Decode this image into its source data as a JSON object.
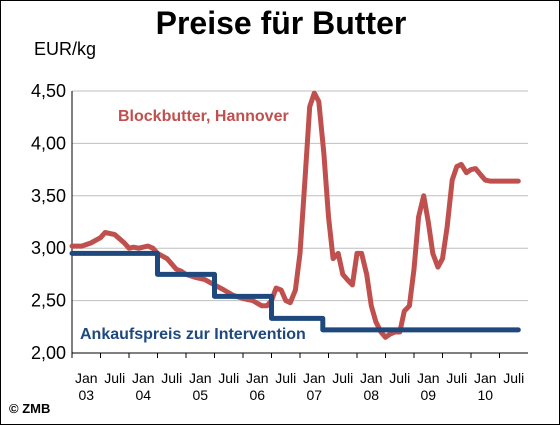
{
  "chart_data": {
    "type": "line",
    "title": "Preise für Butter",
    "ylabel": "EUR/kg",
    "ylim": [
      2.0,
      4.5
    ],
    "yticks": [
      "2,00",
      "2,50",
      "3,00",
      "3,50",
      "4,00",
      "4,50"
    ],
    "ytick_values": [
      2.0,
      2.5,
      3.0,
      3.5,
      4.0,
      4.5
    ],
    "xrange": [
      2003.0,
      2011.0
    ],
    "xtick_top": [
      "Jan",
      "Juli",
      "Jan",
      "Juli",
      "Jan",
      "Juli",
      "Jan",
      "Juli",
      "Jan",
      "Juli",
      "Jan",
      "Juli",
      "Jan",
      "Juli",
      "Jan",
      "Juli"
    ],
    "xtick_years": [
      "03",
      "04",
      "05",
      "06",
      "07",
      "08",
      "09",
      "10"
    ],
    "grid": "horizontal",
    "series": [
      {
        "name": "Blockbutter, Hannover",
        "color": "#c0504d",
        "x": [
          2003.0,
          2003.17,
          2003.33,
          2003.5,
          2003.58,
          2003.75,
          2003.92,
          2004.0,
          2004.08,
          2004.17,
          2004.33,
          2004.42,
          2004.5,
          2004.67,
          2004.83,
          2004.92,
          2005.0,
          2005.17,
          2005.33,
          2005.5,
          2005.67,
          2005.83,
          2006.0,
          2006.17,
          2006.33,
          2006.42,
          2006.5,
          2006.58,
          2006.67,
          2006.75,
          2006.83,
          2006.92,
          2007.0,
          2007.08,
          2007.17,
          2007.25,
          2007.33,
          2007.42,
          2007.5,
          2007.58,
          2007.67,
          2007.75,
          2007.83,
          2007.92,
          2008.0,
          2008.08,
          2008.17,
          2008.25,
          2008.33,
          2008.42,
          2008.5,
          2008.58,
          2008.67,
          2008.75,
          2008.83,
          2008.92,
          2009.0,
          2009.08,
          2009.17,
          2009.25,
          2009.33,
          2009.42,
          2009.5,
          2009.58,
          2009.67,
          2009.75,
          2009.83,
          2009.92,
          2010.0,
          2010.08,
          2010.17,
          2010.25,
          2010.33,
          2010.42,
          2010.5,
          2010.58,
          2010.67,
          2010.75,
          2010.83
        ],
        "values": [
          3.02,
          3.02,
          3.05,
          3.1,
          3.15,
          3.13,
          3.05,
          3.0,
          3.01,
          3.0,
          3.02,
          3.0,
          2.95,
          2.9,
          2.8,
          2.78,
          2.75,
          2.72,
          2.7,
          2.65,
          2.6,
          2.55,
          2.52,
          2.5,
          2.45,
          2.45,
          2.5,
          2.62,
          2.6,
          2.5,
          2.48,
          2.6,
          2.95,
          3.6,
          4.35,
          4.48,
          4.4,
          3.9,
          3.3,
          2.9,
          2.95,
          2.75,
          2.7,
          2.65,
          2.95,
          2.95,
          2.75,
          2.45,
          2.3,
          2.2,
          2.15,
          2.18,
          2.2,
          2.2,
          2.4,
          2.45,
          2.8,
          3.3,
          3.5,
          3.25,
          2.95,
          2.82,
          2.9,
          3.2,
          3.65,
          3.78,
          3.8,
          3.72,
          3.75,
          3.76,
          3.7,
          3.65,
          3.64,
          3.64,
          3.64,
          3.64,
          3.64,
          3.64,
          3.64
        ]
      },
      {
        "name": "Ankaufspreis zur Intervention",
        "color": "#1f497d",
        "x": [
          2003.0,
          2004.5,
          2004.5,
          2005.5,
          2005.5,
          2006.5,
          2006.5,
          2007.4,
          2007.4,
          2010.83
        ],
        "values": [
          2.95,
          2.95,
          2.75,
          2.75,
          2.54,
          2.54,
          2.33,
          2.33,
          2.22,
          2.22
        ]
      }
    ]
  },
  "copyright": "© ZMB"
}
